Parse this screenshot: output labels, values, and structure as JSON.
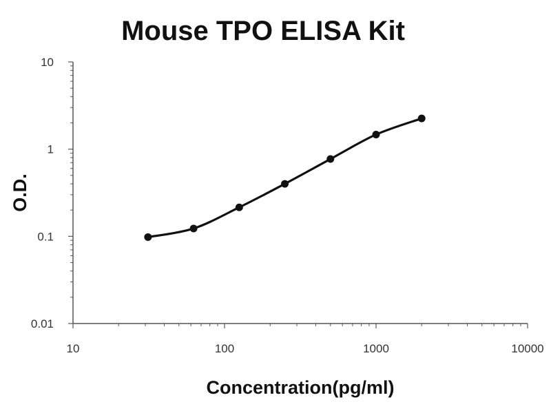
{
  "chart_data": {
    "type": "scatter",
    "title": "Mouse TPO ELISA Kit",
    "xlabel": "Concentration(pg/ml)",
    "ylabel": "O.D.",
    "x_scale": "log",
    "y_scale": "log",
    "xlim": [
      10,
      10000
    ],
    "ylim": [
      0.01,
      10
    ],
    "x_ticks": [
      "10",
      "100",
      "1000",
      "10000"
    ],
    "y_ticks": [
      "0.01",
      "0.1",
      "1",
      "10"
    ],
    "grid": false,
    "legend": "none",
    "series": [
      {
        "x": [
          31.25,
          62.5,
          125,
          250,
          500,
          1000,
          2000
        ],
        "y": [
          0.098,
          0.123,
          0.215,
          0.4,
          0.77,
          1.47,
          2.25
        ]
      }
    ],
    "fit_curve": true,
    "colors": {
      "marker": "#111111",
      "line": "#111111",
      "axis": "#555555"
    }
  }
}
